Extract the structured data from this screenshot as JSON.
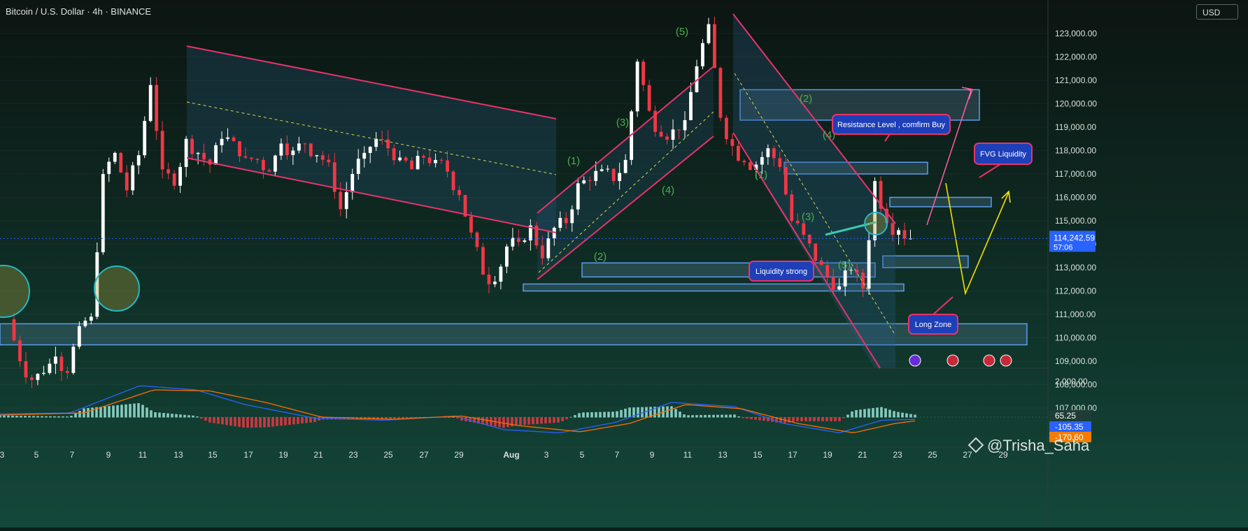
{
  "header": {
    "symbol_line": "Bitcoin / U.S. Dollar · 4h · BINANCE",
    "currency": "USD"
  },
  "price_axis": {
    "ticks": [
      "123,000.00",
      "122,000.00",
      "121,000.00",
      "120,000.00",
      "119,000.00",
      "118,000.00",
      "117,000.00",
      "116,000.00",
      "115,000.00",
      "114,000.00",
      "113,000.00",
      "112,000.00",
      "111,000.00",
      "110,000.00",
      "109,000.00",
      "108,000.00",
      "107,000.00"
    ],
    "last_price": "114,242.59",
    "countdown": "57:06"
  },
  "indicator_axis": {
    "top_tick": "2,000.00",
    "value_1": "65.25",
    "value_2": "-105.35",
    "value_3": "-170.60"
  },
  "time_axis": [
    "3",
    "5",
    "7",
    "9",
    "11",
    "13",
    "15",
    "17",
    "19",
    "21",
    "23",
    "25",
    "27",
    "29",
    "Aug",
    "3",
    "5",
    "7",
    "9",
    "11",
    "13",
    "15",
    "17",
    "19",
    "21",
    "23",
    "25",
    "27",
    "29"
  ],
  "annotations": {
    "resistance": "Resistance Level , comfirm Buy",
    "fvg": "FVG Liquidity",
    "liquidity": "Liquidity strong",
    "long_zone": "Long Zone",
    "waves_up": [
      "(1)",
      "(2)",
      "(3)",
      "(4)",
      "(5)"
    ],
    "waves_down": [
      "(1)",
      "(2)",
      "(3)",
      "(4)",
      "(5)"
    ]
  },
  "watermark": "@Trisha_Saha",
  "colors": {
    "background": "#0b1f1a",
    "bull": "#ffffff",
    "bear": "#f23645",
    "channel": "#e8336b",
    "zone": "#5b9cf0",
    "wave_label": "#4caf50",
    "macd": "#2962ff",
    "signal": "#ff6d00",
    "label_bg": "#1e3fb8"
  },
  "chart_data": {
    "type": "candlestick",
    "timeframe": "4h",
    "x_range": [
      "Jul 3",
      "Aug 29"
    ],
    "y_range": [
      106500,
      123600
    ],
    "last_close": 114242.59,
    "price_path": [
      [
        0,
        110800
      ],
      [
        2,
        109000
      ],
      [
        4,
        108200
      ],
      [
        6,
        108500
      ],
      [
        8,
        109200
      ],
      [
        10,
        108500
      ],
      [
        12,
        110500
      ],
      [
        14,
        110900
      ],
      [
        16,
        117000
      ],
      [
        18,
        117900
      ],
      [
        20,
        116300
      ],
      [
        22,
        117800
      ],
      [
        24,
        120800
      ],
      [
        26,
        117200
      ],
      [
        28,
        116500
      ],
      [
        30,
        118500
      ],
      [
        32,
        117900
      ],
      [
        34,
        117400
      ],
      [
        36,
        118500
      ],
      [
        38,
        118400
      ],
      [
        40,
        117700
      ],
      [
        42,
        117600
      ],
      [
        44,
        117100
      ],
      [
        46,
        118300
      ],
      [
        48,
        118000
      ],
      [
        50,
        118300
      ],
      [
        52,
        117800
      ],
      [
        54,
        117500
      ],
      [
        56,
        115500
      ],
      [
        58,
        117000
      ],
      [
        60,
        117900
      ],
      [
        62,
        118500
      ],
      [
        64,
        118100
      ],
      [
        66,
        117700
      ],
      [
        68,
        117200
      ],
      [
        70,
        117700
      ],
      [
        72,
        117600
      ],
      [
        74,
        117100
      ],
      [
        76,
        116100
      ],
      [
        78,
        114500
      ],
      [
        80,
        112700
      ],
      [
        82,
        112400
      ],
      [
        84,
        113900
      ],
      [
        86,
        114100
      ],
      [
        88,
        114800
      ],
      [
        90,
        113400
      ],
      [
        92,
        114700
      ],
      [
        94,
        114900
      ],
      [
        96,
        116600
      ],
      [
        98,
        116700
      ],
      [
        100,
        117200
      ],
      [
        102,
        116700
      ],
      [
        104,
        117600
      ],
      [
        106,
        121800
      ],
      [
        108,
        119700
      ],
      [
        110,
        118600
      ],
      [
        112,
        118900
      ],
      [
        114,
        119300
      ],
      [
        116,
        121600
      ],
      [
        118,
        123400
      ],
      [
        120,
        119400
      ],
      [
        122,
        118200
      ],
      [
        124,
        117500
      ],
      [
        126,
        117400
      ],
      [
        128,
        118100
      ],
      [
        130,
        117300
      ],
      [
        132,
        115000
      ],
      [
        134,
        114400
      ],
      [
        136,
        113300
      ],
      [
        138,
        112600
      ],
      [
        140,
        112200
      ],
      [
        142,
        112900
      ],
      [
        144,
        112100
      ],
      [
        146,
        116700
      ],
      [
        148,
        114900
      ],
      [
        150,
        114600
      ],
      [
        152,
        114242.59
      ]
    ],
    "zones": [
      {
        "name": "resistance zone",
        "low": 119300,
        "high": 120600
      },
      {
        "name": "resistance level",
        "low": 117000,
        "high": 117500
      },
      {
        "name": "FVG",
        "low": 115600,
        "high": 116000
      },
      {
        "name": "support",
        "low": 113000,
        "high": 113500
      },
      {
        "name": "liquidity",
        "low": 112600,
        "high": 113200
      },
      {
        "name": "range low",
        "low": 112000,
        "high": 112300
      },
      {
        "name": "long zone",
        "low": 109700,
        "high": 110600
      }
    ],
    "indicator": {
      "name": "MACD",
      "macd": -105.35,
      "signal": -170.6,
      "histogram": 65.25
    }
  }
}
